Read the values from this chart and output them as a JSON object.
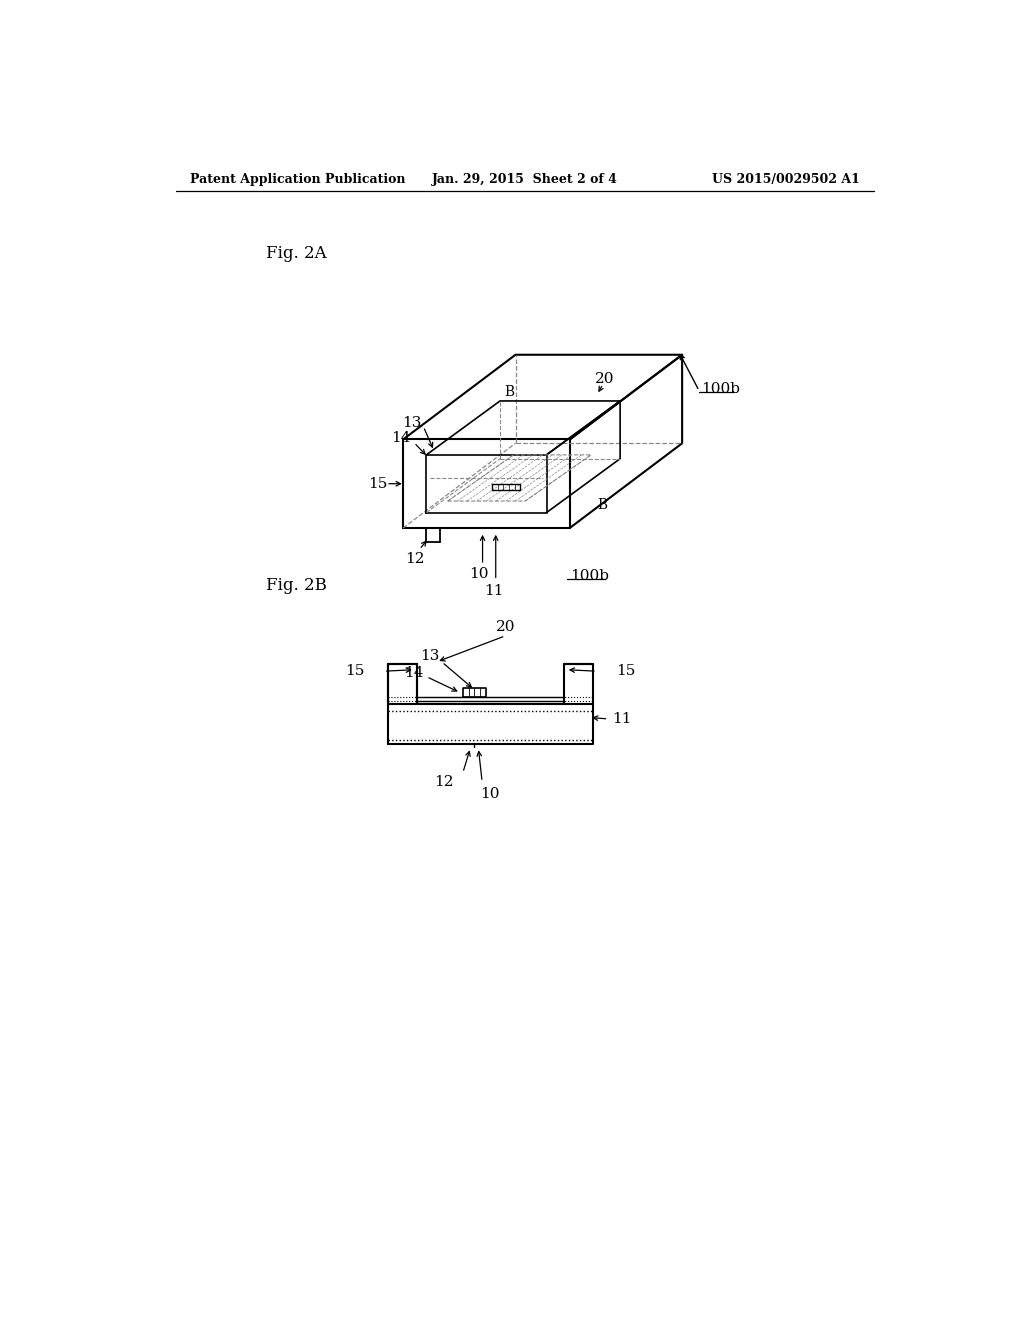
{
  "background_color": "#ffffff",
  "header_left": "Patent Application Publication",
  "header_center": "Jan. 29, 2015  Sheet 2 of 4",
  "header_right": "US 2015/0029502 A1",
  "fig2A_label": "Fig. 2A",
  "fig2B_label": "Fig. 2B",
  "label_color": "#000000",
  "line_color": "#000000",
  "dashed_color": "#888888"
}
